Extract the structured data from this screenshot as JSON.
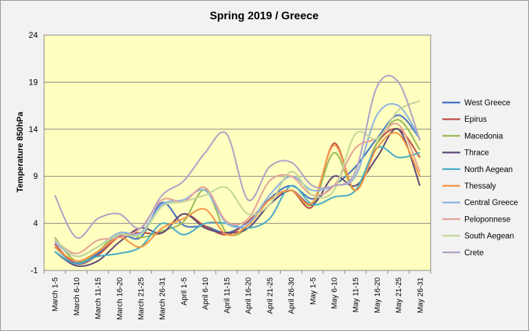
{
  "chart_data": {
    "type": "line",
    "title": "Spring 2019 / Greece",
    "xlabel": "",
    "ylabel": "Temperature 850hPa",
    "ylim": [
      -1,
      24
    ],
    "yticks": [
      -1,
      4,
      9,
      14,
      19,
      24
    ],
    "grid": "horizontal",
    "legend_position": "right",
    "plot_background": "#ffffc0",
    "categories": [
      "March 1-5",
      "March 6-10",
      "March 11-15",
      "March 16-20",
      "March 21-25",
      "March 26-31",
      "April 1-5",
      "April 6-10",
      "April 11-15",
      "April 16-20",
      "April 21-25",
      "April 26-30",
      "May 1-5",
      "May 6-10",
      "May 11-15",
      "May 16-20",
      "May 21-25",
      "May 26-31"
    ],
    "series": [
      {
        "name": "West Greece",
        "color": "#4472c4",
        "values": [
          1.5,
          -0.2,
          0.8,
          2.8,
          2.5,
          6.2,
          3.8,
          3.7,
          3.0,
          4.2,
          6.6,
          8.0,
          6.6,
          8.0,
          10.0,
          13.0,
          15.5,
          13.0
        ]
      },
      {
        "name": "Epirus",
        "color": "#c0504d",
        "values": [
          1.8,
          -0.3,
          0.6,
          2.6,
          3.0,
          3.0,
          5.0,
          3.7,
          2.8,
          4.2,
          6.5,
          7.5,
          5.8,
          12.5,
          7.5,
          12.5,
          14.0,
          11.0
        ]
      },
      {
        "name": "Macedonia",
        "color": "#9bbb59",
        "values": [
          2.5,
          0.0,
          1.0,
          3.0,
          2.5,
          3.2,
          4.2,
          7.6,
          3.0,
          3.5,
          6.0,
          7.5,
          6.0,
          11.5,
          7.5,
          12.5,
          15.0,
          11.8
        ]
      },
      {
        "name": "Thrace",
        "color": "#604a7b",
        "values": [
          1.0,
          -0.5,
          0.0,
          2.0,
          3.5,
          3.0,
          5.0,
          3.5,
          3.0,
          3.5,
          6.0,
          7.5,
          6.0,
          9.0,
          8.0,
          11.0,
          14.0,
          8.0
        ]
      },
      {
        "name": "North Aegean",
        "color": "#4bacc6",
        "values": [
          1.0,
          -0.3,
          0.5,
          0.8,
          1.5,
          4.0,
          2.8,
          4.0,
          4.0,
          3.5,
          4.5,
          8.0,
          6.0,
          6.8,
          7.5,
          12.0,
          11.0,
          11.5
        ]
      },
      {
        "name": "Thessaly",
        "color": "#f79646",
        "values": [
          1.5,
          0.0,
          1.0,
          2.5,
          1.5,
          3.5,
          4.5,
          5.5,
          2.8,
          3.8,
          6.5,
          7.5,
          6.2,
          12.3,
          7.5,
          12.0,
          13.5,
          9.0
        ]
      },
      {
        "name": "Central Greece",
        "color": "#8eb4e3",
        "values": [
          2.0,
          0.5,
          1.5,
          3.0,
          3.0,
          6.0,
          6.5,
          7.5,
          4.0,
          4.0,
          7.0,
          9.0,
          7.5,
          8.0,
          9.0,
          15.5,
          16.5,
          13.0
        ]
      },
      {
        "name": "Peloponnese",
        "color": "#e6a39b",
        "values": [
          2.2,
          0.8,
          2.2,
          2.5,
          3.5,
          6.5,
          6.3,
          7.8,
          4.2,
          4.5,
          8.5,
          9.0,
          7.0,
          8.0,
          12.0,
          13.0,
          14.5,
          9.5
        ]
      },
      {
        "name": "South Aegean",
        "color": "#c3d69b",
        "values": [
          2.3,
          0.5,
          1.5,
          2.8,
          2.8,
          5.8,
          6.3,
          7.0,
          7.8,
          5.0,
          6.0,
          9.5,
          7.0,
          7.5,
          13.5,
          13.0,
          16.0,
          17.0
        ]
      },
      {
        "name": "Crete",
        "color": "#b3a2c7",
        "values": [
          7.0,
          2.5,
          4.5,
          5.0,
          3.5,
          7.0,
          8.5,
          11.5,
          13.5,
          6.5,
          10.0,
          10.5,
          8.0,
          8.0,
          9.5,
          18.5,
          19.0,
          12.8
        ]
      }
    ]
  }
}
